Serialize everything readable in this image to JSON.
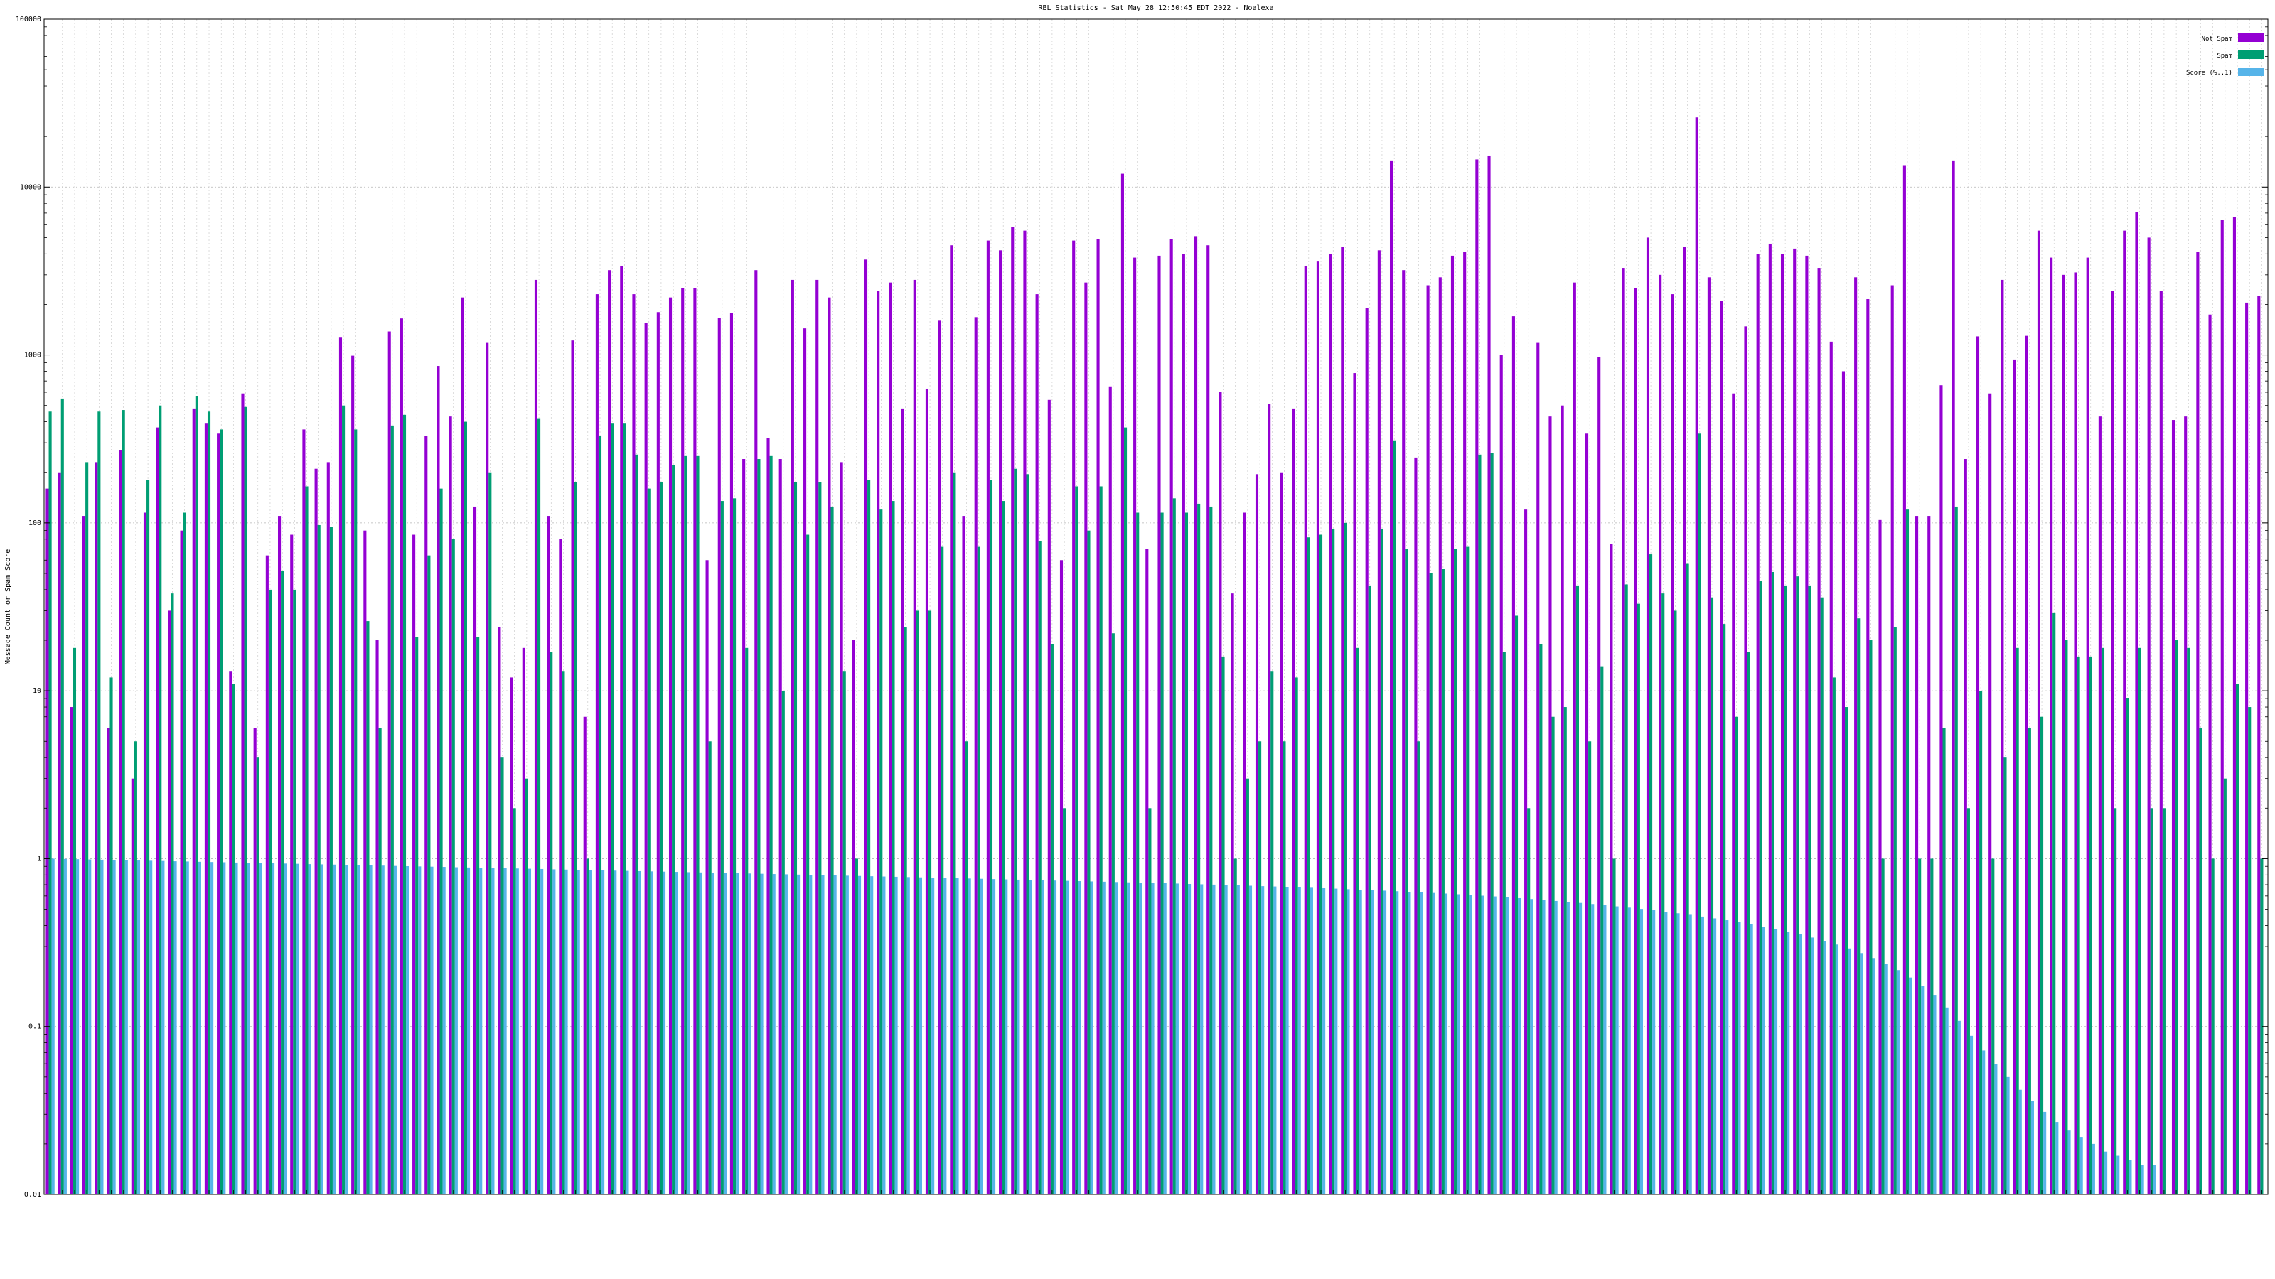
{
  "chart_data": {
    "type": "bar",
    "title": "RBL Statistics - Sat May 28 12:50:45 EDT 2022 - Noalexa",
    "ylabel": "Message Count or Spam Score",
    "xlabel": "",
    "yscale": "log",
    "ylim": [
      0.01,
      100000
    ],
    "yticks": [
      {
        "value": 0.01,
        "label": "0.01"
      },
      {
        "value": 0.1,
        "label": "0.1"
      },
      {
        "value": 1,
        "label": "1"
      },
      {
        "value": 10,
        "label": "10"
      },
      {
        "value": 100,
        "label": "100"
      },
      {
        "value": 1000,
        "label": "1000"
      },
      {
        "value": 10000,
        "label": "10000"
      },
      {
        "value": 100000,
        "label": "100000"
      }
    ],
    "grid": true,
    "legend_position": "top-right",
    "x_tick_labels_legible": false,
    "series": [
      {
        "name": "Not Spam",
        "color": "#9400d3",
        "values": [
          160,
          200,
          8,
          110,
          230,
          6,
          270,
          3,
          115,
          370,
          30,
          90,
          480,
          390,
          340,
          13,
          590,
          6,
          64,
          110,
          85,
          360,
          210,
          230,
          1280,
          990,
          90,
          20,
          1380,
          1650,
          85,
          330,
          860,
          430,
          2200,
          125,
          1180,
          24,
          12,
          18,
          2800,
          110,
          80,
          1220,
          7,
          2300,
          3200,
          3400,
          2300,
          1550,
          1800,
          2200,
          2500,
          2500,
          60,
          1660,
          1780,
          240,
          3200,
          320,
          240,
          2800,
          1440,
          2800,
          2200,
          230,
          20,
          3700,
          2400,
          2700,
          480,
          2800,
          630,
          1600,
          4500,
          110,
          1680,
          4800,
          4200,
          5800,
          5500,
          2300,
          540,
          60,
          4800,
          2700,
          4900,
          650,
          12000,
          3800,
          70,
          3900,
          4900,
          4000,
          5100,
          4500,
          600,
          38,
          115,
          195,
          510,
          200,
          480,
          3400,
          3600,
          4000,
          4400,
          780,
          1900,
          4200,
          14400,
          3200,
          245,
          2600,
          2900,
          3900,
          4100,
          14600,
          15400,
          1000,
          1700,
          120,
          1180,
          430,
          500,
          2700,
          340,
          970,
          75,
          3300,
          2500,
          5000,
          3000,
          2300,
          4400,
          26000,
          2900,
          2100,
          590,
          1480,
          4000,
          4600,
          4000,
          4300,
          3900,
          3300,
          1200,
          800,
          2900,
          2150,
          104,
          2600,
          13500,
          110,
          110,
          660,
          14400,
          240,
          1290,
          590,
          2800,
          940,
          1300,
          5500,
          3800,
          3000,
          3100,
          3800,
          430,
          2400,
          5500,
          7100,
          5000,
          2400,
          410,
          430,
          4100,
          1740,
          6400,
          6600,
          2050,
          2250
        ]
      },
      {
        "name": "Spam",
        "color": "#009e73",
        "values": [
          460,
          550,
          18,
          230,
          460,
          12,
          470,
          5,
          180,
          500,
          38,
          115,
          570,
          460,
          360,
          11,
          490,
          4,
          40,
          52,
          40,
          165,
          97,
          95,
          500,
          360,
          26,
          6,
          380,
          440,
          21,
          64,
          160,
          80,
          400,
          21,
          200,
          4,
          2,
          3,
          420,
          17,
          13,
          175,
          1,
          330,
          390,
          390,
          255,
          160,
          175,
          220,
          250,
          250,
          5,
          135,
          140,
          18,
          240,
          250,
          10,
          175,
          85,
          175,
          125,
          13,
          1,
          180,
          120,
          135,
          24,
          30,
          30,
          72,
          200,
          5,
          72,
          180,
          135,
          210,
          195,
          78,
          19,
          2,
          165,
          90,
          165,
          22,
          370,
          115,
          2,
          115,
          140,
          115,
          130,
          125,
          16,
          1,
          3,
          5,
          13,
          5,
          12,
          82,
          85,
          92,
          100,
          18,
          42,
          92,
          310,
          70,
          5,
          50,
          53,
          70,
          72,
          255,
          260,
          17,
          28,
          2,
          19,
          7,
          8,
          42,
          5,
          14,
          1,
          43,
          33,
          65,
          38,
          30,
          57,
          340,
          36,
          25,
          7,
          17,
          45,
          51,
          42,
          48,
          42,
          36,
          12,
          8,
          27,
          20,
          1,
          24,
          120,
          1,
          1,
          6,
          125,
          2,
          10,
          1,
          4,
          18,
          6,
          7,
          29,
          20,
          16,
          16,
          18,
          2,
          9,
          18,
          2,
          2,
          20,
          18,
          6,
          1,
          3,
          11,
          8,
          1
        ]
      },
      {
        "name": "Score (%..1)",
        "color": "#56b4e9",
        "values": [
          1,
          0.996,
          0.993,
          0.989,
          0.986,
          0.982,
          0.979,
          0.975,
          0.972,
          0.969,
          0.965,
          0.962,
          0.958,
          0.955,
          0.952,
          0.948,
          0.945,
          0.941,
          0.938,
          0.935,
          0.932,
          0.928,
          0.925,
          0.922,
          0.918,
          0.915,
          0.912,
          0.909,
          0.905,
          0.902,
          0.899,
          0.896,
          0.893,
          0.889,
          0.886,
          0.883,
          0.88,
          0.877,
          0.874,
          0.871,
          0.868,
          0.864,
          0.861,
          0.858,
          0.855,
          0.852,
          0.849,
          0.846,
          0.843,
          0.84,
          0.837,
          0.834,
          0.831,
          0.828,
          0.825,
          0.822,
          0.819,
          0.816,
          0.813,
          0.81,
          0.807,
          0.804,
          0.801,
          0.798,
          0.795,
          0.792,
          0.789,
          0.786,
          0.783,
          0.78,
          0.777,
          0.774,
          0.771,
          0.768,
          0.765,
          0.762,
          0.759,
          0.756,
          0.753,
          0.75,
          0.747,
          0.744,
          0.741,
          0.738,
          0.735,
          0.732,
          0.729,
          0.726,
          0.723,
          0.72,
          0.717,
          0.714,
          0.711,
          0.707,
          0.704,
          0.701,
          0.697,
          0.694,
          0.69,
          0.686,
          0.683,
          0.679,
          0.675,
          0.671,
          0.667,
          0.663,
          0.658,
          0.654,
          0.65,
          0.645,
          0.64,
          0.635,
          0.63,
          0.625,
          0.62,
          0.614,
          0.608,
          0.602,
          0.596,
          0.589,
          0.582,
          0.575,
          0.568,
          0.56,
          0.553,
          0.545,
          0.537,
          0.529,
          0.52,
          0.511,
          0.502,
          0.493,
          0.483,
          0.473,
          0.463,
          0.452,
          0.441,
          0.43,
          0.418,
          0.406,
          0.394,
          0.381,
          0.368,
          0.354,
          0.339,
          0.324,
          0.308,
          0.292,
          0.274,
          0.256,
          0.237,
          0.217,
          0.196,
          0.175,
          0.153,
          0.13,
          0.108,
          0.088,
          0.072,
          0.06,
          0.05,
          0.042,
          0.036,
          0.031,
          0.027,
          0.024,
          0.022,
          0.02,
          0.018,
          0.017,
          0.016,
          0.015,
          0.015
        ]
      }
    ]
  }
}
